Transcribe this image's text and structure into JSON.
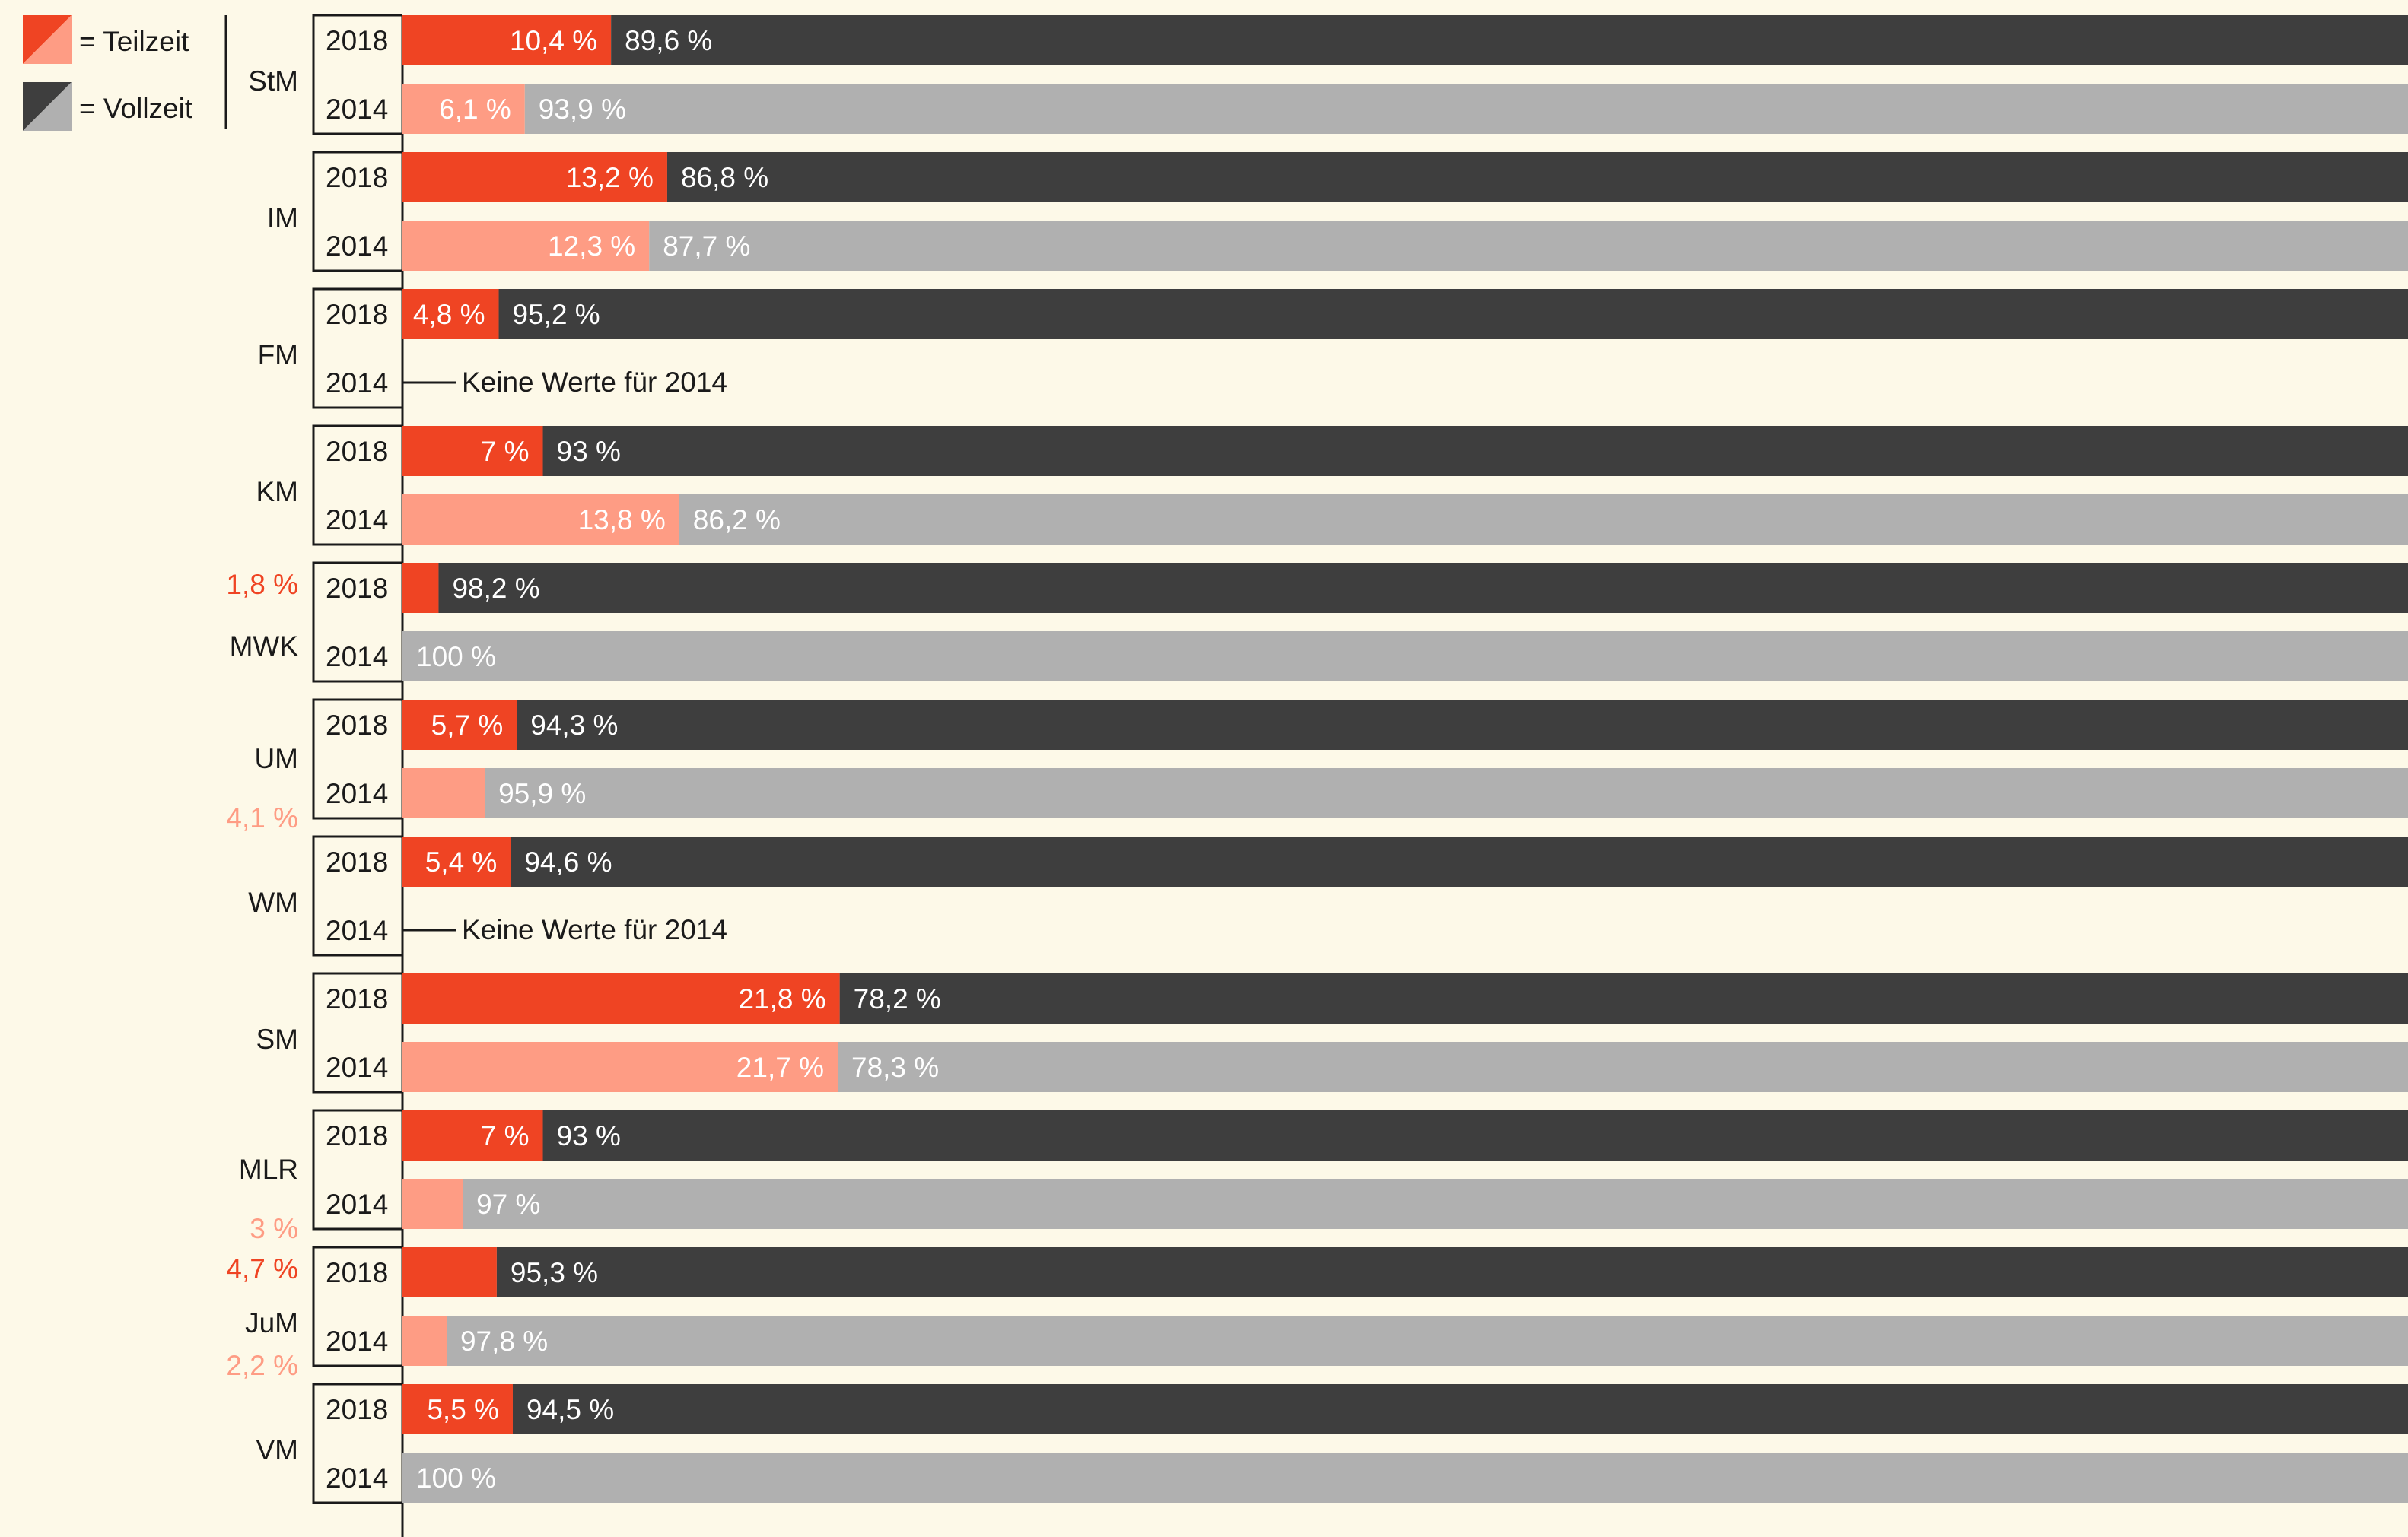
{
  "legend": {
    "teilzeit_label": "= Teilzeit",
    "vollzeit_label": "= Vollzeit"
  },
  "colors": {
    "teilzeit_2018": "#ef4423",
    "teilzeit_2014": "#fe9c84",
    "vollzeit_2018": "#3e3e3e",
    "vollzeit_2014": "#b0b0b0",
    "background": "#fdf9e8",
    "line": "#1a1a1a"
  },
  "chart_data": {
    "type": "bar",
    "orientation": "horizontal",
    "stacked": true,
    "series": [
      {
        "name": "Teilzeit"
      },
      {
        "name": "Vollzeit"
      }
    ],
    "years": [
      "2018",
      "2014"
    ],
    "no_data_note": "Keine Werte für 2014",
    "groups": [
      {
        "ministry": "StM",
        "rows": [
          {
            "year": "2018",
            "teilzeit": 10.4,
            "vollzeit": 89.6,
            "teilzeit_label": "10,4 %",
            "vollzeit_label": "89,6 %"
          },
          {
            "year": "2014",
            "teilzeit": 6.1,
            "vollzeit": 93.9,
            "teilzeit_label": "6,1 %",
            "vollzeit_label": "93,9 %"
          }
        ]
      },
      {
        "ministry": "IM",
        "rows": [
          {
            "year": "2018",
            "teilzeit": 13.2,
            "vollzeit": 86.8,
            "teilzeit_label": "13,2 %",
            "vollzeit_label": "86,8 %"
          },
          {
            "year": "2014",
            "teilzeit": 12.3,
            "vollzeit": 87.7,
            "teilzeit_label": "12,3 %",
            "vollzeit_label": "87,7 %"
          }
        ]
      },
      {
        "ministry": "FM",
        "rows": [
          {
            "year": "2018",
            "teilzeit": 4.8,
            "vollzeit": 95.2,
            "teilzeit_label": "4,8 %",
            "vollzeit_label": "95,2 %"
          },
          {
            "year": "2014",
            "teilzeit": null,
            "vollzeit": null
          }
        ]
      },
      {
        "ministry": "KM",
        "rows": [
          {
            "year": "2018",
            "teilzeit": 7,
            "vollzeit": 93,
            "teilzeit_label": "7 %",
            "vollzeit_label": "93 %"
          },
          {
            "year": "2014",
            "teilzeit": 13.8,
            "vollzeit": 86.2,
            "teilzeit_label": "13,8 %",
            "vollzeit_label": "86,2 %"
          }
        ]
      },
      {
        "ministry": "MWK",
        "rows": [
          {
            "year": "2018",
            "teilzeit": 1.8,
            "vollzeit": 98.2,
            "teilzeit_label": "1,8 %",
            "vollzeit_label": "98,2 %",
            "teilzeit_outside": true
          },
          {
            "year": "2014",
            "teilzeit": 0,
            "vollzeit": 100,
            "teilzeit_label": "",
            "vollzeit_label": "100 %"
          }
        ]
      },
      {
        "ministry": "UM",
        "rows": [
          {
            "year": "2018",
            "teilzeit": 5.7,
            "vollzeit": 94.3,
            "teilzeit_label": "5,7 %",
            "vollzeit_label": "94,3 %"
          },
          {
            "year": "2014",
            "teilzeit": 4.1,
            "vollzeit": 95.9,
            "teilzeit_label": "4,1 %",
            "vollzeit_label": "95,9 %",
            "teilzeit_outside": true
          }
        ]
      },
      {
        "ministry": "WM",
        "rows": [
          {
            "year": "2018",
            "teilzeit": 5.4,
            "vollzeit": 94.6,
            "teilzeit_label": "5,4 %",
            "vollzeit_label": "94,6 %"
          },
          {
            "year": "2014",
            "teilzeit": null,
            "vollzeit": null
          }
        ]
      },
      {
        "ministry": "SM",
        "rows": [
          {
            "year": "2018",
            "teilzeit": 21.8,
            "vollzeit": 78.2,
            "teilzeit_label": "21,8 %",
            "vollzeit_label": "78,2 %"
          },
          {
            "year": "2014",
            "teilzeit": 21.7,
            "vollzeit": 78.3,
            "teilzeit_label": "21,7 %",
            "vollzeit_label": "78,3 %"
          }
        ]
      },
      {
        "ministry": "MLR",
        "rows": [
          {
            "year": "2018",
            "teilzeit": 7,
            "vollzeit": 93,
            "teilzeit_label": "7 %",
            "vollzeit_label": "93 %"
          },
          {
            "year": "2014",
            "teilzeit": 3,
            "vollzeit": 97,
            "teilzeit_label": "3 %",
            "vollzeit_label": "97 %",
            "teilzeit_outside": true
          }
        ]
      },
      {
        "ministry": "JuM",
        "rows": [
          {
            "year": "2018",
            "teilzeit": 4.7,
            "vollzeit": 95.3,
            "teilzeit_label": "4,7 %",
            "vollzeit_label": "95,3 %",
            "teilzeit_outside": true
          },
          {
            "year": "2014",
            "teilzeit": 2.2,
            "vollzeit": 97.8,
            "teilzeit_label": "2,2 %",
            "vollzeit_label": "97,8 %",
            "teilzeit_outside": true
          }
        ]
      },
      {
        "ministry": "VM",
        "rows": [
          {
            "year": "2018",
            "teilzeit": 5.5,
            "vollzeit": 94.5,
            "teilzeit_label": "5,5 %",
            "vollzeit_label": "94,5 %"
          },
          {
            "year": "2014",
            "teilzeit": 0,
            "vollzeit": 100,
            "teilzeit_label": "",
            "vollzeit_label": "100 %"
          }
        ]
      }
    ]
  }
}
